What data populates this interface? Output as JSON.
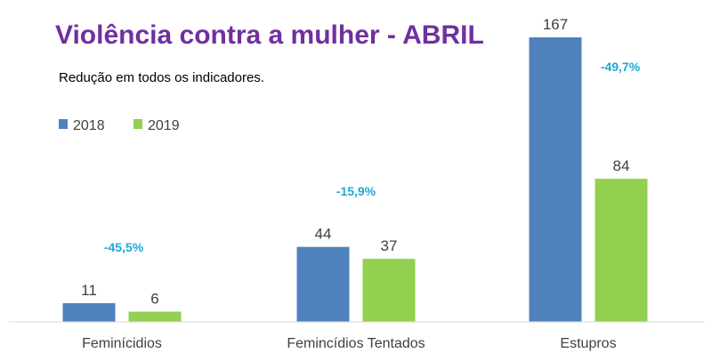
{
  "chart_data": {
    "type": "bar",
    "title": "Violência contra a mulher - ABRIL",
    "subtitle": "Redução em todos os indicadores.",
    "categories": [
      "Feminícidios",
      "Femincídios Tentados",
      "Estupros"
    ],
    "series": [
      {
        "name": "2018",
        "values": [
          11,
          44,
          167
        ],
        "color": "#4f81bd"
      },
      {
        "name": "2019",
        "values": [
          6,
          37,
          84
        ],
        "color": "#92d050"
      }
    ],
    "changes": [
      "-45,5%",
      "-15,9%",
      "-49,7%"
    ],
    "change_color": "#1fa8d8",
    "ylim": [
      0,
      175
    ],
    "legend_position": "top-left",
    "grid": false
  }
}
